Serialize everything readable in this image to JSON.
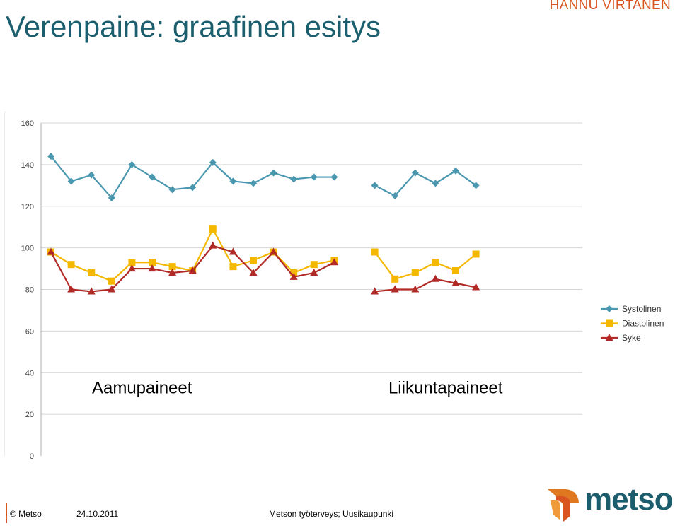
{
  "slide": {
    "title": "Verenpaine: graafinen esitys",
    "author": "HANNU VIRTANEN"
  },
  "footer": {
    "copyright": "© Metso",
    "date": "24.10.2011",
    "organization": "Metson työterveys; Uusikaupunki",
    "logo_text": "metso"
  },
  "colors": {
    "systolic": "#4a97b0",
    "diastolic": "#f5b800",
    "pulse": "#b22a26",
    "title": "#1b5f6e",
    "author": "#d9541e",
    "grid": "#d6d6d6"
  },
  "chart_data": {
    "type": "line",
    "title": "",
    "xlabel": "",
    "ylabel": "",
    "ylim": [
      0,
      160
    ],
    "yticks": [
      0,
      20,
      40,
      60,
      80,
      100,
      120,
      140,
      160
    ],
    "grid": true,
    "legend_position": "right",
    "x": [
      1,
      2,
      3,
      4,
      5,
      6,
      7,
      8,
      9,
      10,
      11,
      12,
      13,
      14,
      15,
      16,
      17,
      18,
      19,
      20,
      21,
      22
    ],
    "series": [
      {
        "name": "Systolinen",
        "marker": "diamond",
        "values": [
          144,
          132,
          135,
          124,
          140,
          134,
          128,
          129,
          141,
          132,
          131,
          136,
          133,
          134,
          134,
          null,
          130,
          125,
          136,
          131,
          137,
          130
        ]
      },
      {
        "name": "Diastolinen",
        "marker": "square",
        "values": [
          98,
          92,
          88,
          84,
          93,
          93,
          91,
          89,
          109,
          91,
          94,
          98,
          88,
          92,
          94,
          null,
          98,
          85,
          88,
          93,
          89,
          97
        ]
      },
      {
        "name": "Syke",
        "marker": "triangle",
        "values": [
          98,
          80,
          79,
          80,
          90,
          90,
          88,
          89,
          101,
          98,
          88,
          98,
          86,
          88,
          93,
          null,
          79,
          80,
          80,
          85,
          83,
          81
        ]
      }
    ],
    "annotations": [
      {
        "text": "Aamupaineet",
        "x": 5.5,
        "y": 30
      },
      {
        "text": "Liikuntapaineet",
        "x": 20.5,
        "y": 30
      }
    ]
  }
}
